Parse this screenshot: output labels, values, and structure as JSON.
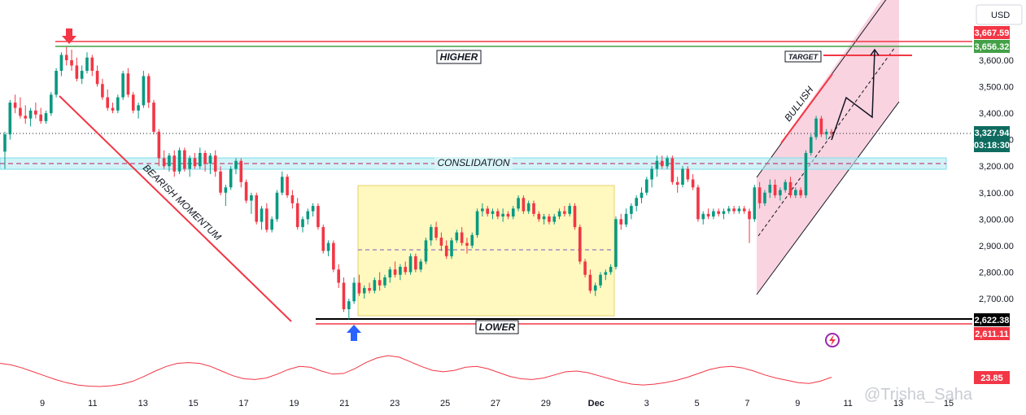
{
  "chart_data": {
    "type": "candlestick",
    "currency_label": "USD",
    "y_ticks": [
      "3,600.00",
      "3,500.00",
      "3,400.00",
      "3,300.00",
      "3,200.00",
      "3,100.00",
      "3,000.00",
      "2,900.00",
      "2,800.00",
      "2,700.00"
    ],
    "ylim": [
      2590,
      3760
    ],
    "x_ticks": [
      "9",
      "11",
      "13",
      "15",
      "17",
      "19",
      "21",
      "23",
      "25",
      "27",
      "29",
      "Dec",
      "3",
      "5",
      "7",
      "9",
      "11",
      "13",
      "15"
    ],
    "price_tags": [
      {
        "label": "3,667.59",
        "value": 3667.59,
        "color": "#f23645"
      },
      {
        "label": "3,656.32",
        "value": 3656.32,
        "color": "#43a047"
      },
      {
        "label": "3,327.94",
        "value": 3327.94,
        "color": "#0f6b5f",
        "sub": "03:18:30"
      },
      {
        "label": "2,622.38",
        "value": 2622.38,
        "color": "#000000"
      },
      {
        "label": "2,611.11",
        "value": 2611.11,
        "color": "#f23645"
      }
    ],
    "annotations": {
      "higher": "HIGHER",
      "lower": "LOWER",
      "consolidation": "CONSLIDATION",
      "bearish": "BEARISH MOMENTUM",
      "bullish": "BULLISH",
      "target": "TARGET"
    },
    "indicator": {
      "label": "23.85",
      "color": "#f23645"
    },
    "watermark": "@Trisha_Saha",
    "candles": [
      {
        "o": 3255,
        "h": 3330,
        "l": 3190,
        "c": 3320
      },
      {
        "o": 3320,
        "h": 3450,
        "l": 3300,
        "c": 3440
      },
      {
        "o": 3440,
        "h": 3470,
        "l": 3400,
        "c": 3420
      },
      {
        "o": 3420,
        "h": 3460,
        "l": 3380,
        "c": 3390
      },
      {
        "o": 3390,
        "h": 3430,
        "l": 3360,
        "c": 3380
      },
      {
        "o": 3380,
        "h": 3420,
        "l": 3350,
        "c": 3410
      },
      {
        "o": 3410,
        "h": 3440,
        "l": 3380,
        "c": 3395
      },
      {
        "o": 3395,
        "h": 3420,
        "l": 3360,
        "c": 3370
      },
      {
        "o": 3370,
        "h": 3410,
        "l": 3360,
        "c": 3400
      },
      {
        "o": 3400,
        "h": 3480,
        "l": 3390,
        "c": 3470
      },
      {
        "o": 3470,
        "h": 3570,
        "l": 3460,
        "c": 3560
      },
      {
        "o": 3560,
        "h": 3630,
        "l": 3540,
        "c": 3620
      },
      {
        "o": 3620,
        "h": 3650,
        "l": 3580,
        "c": 3600
      },
      {
        "o": 3600,
        "h": 3640,
        "l": 3560,
        "c": 3580
      },
      {
        "o": 3580,
        "h": 3610,
        "l": 3520,
        "c": 3530
      },
      {
        "o": 3530,
        "h": 3580,
        "l": 3510,
        "c": 3560
      },
      {
        "o": 3560,
        "h": 3630,
        "l": 3550,
        "c": 3610
      },
      {
        "o": 3610,
        "h": 3620,
        "l": 3540,
        "c": 3560
      },
      {
        "o": 3560,
        "h": 3580,
        "l": 3500,
        "c": 3510
      },
      {
        "o": 3510,
        "h": 3530,
        "l": 3450,
        "c": 3460
      },
      {
        "o": 3460,
        "h": 3490,
        "l": 3410,
        "c": 3420
      },
      {
        "o": 3420,
        "h": 3440,
        "l": 3400,
        "c": 3410
      },
      {
        "o": 3410,
        "h": 3470,
        "l": 3400,
        "c": 3460
      },
      {
        "o": 3460,
        "h": 3560,
        "l": 3450,
        "c": 3550
      },
      {
        "o": 3550,
        "h": 3570,
        "l": 3460,
        "c": 3470
      },
      {
        "o": 3470,
        "h": 3480,
        "l": 3400,
        "c": 3410
      },
      {
        "o": 3410,
        "h": 3440,
        "l": 3380,
        "c": 3430
      },
      {
        "o": 3430,
        "h": 3560,
        "l": 3420,
        "c": 3540
      },
      {
        "o": 3540,
        "h": 3550,
        "l": 3420,
        "c": 3440
      },
      {
        "o": 3440,
        "h": 3450,
        "l": 3320,
        "c": 3330
      },
      {
        "o": 3330,
        "h": 3340,
        "l": 3200,
        "c": 3230
      },
      {
        "o": 3230,
        "h": 3260,
        "l": 3190,
        "c": 3200
      },
      {
        "o": 3200,
        "h": 3250,
        "l": 3180,
        "c": 3240
      },
      {
        "o": 3240,
        "h": 3260,
        "l": 3160,
        "c": 3180
      },
      {
        "o": 3180,
        "h": 3270,
        "l": 3170,
        "c": 3260
      },
      {
        "o": 3260,
        "h": 3270,
        "l": 3180,
        "c": 3190
      },
      {
        "o": 3190,
        "h": 3240,
        "l": 3160,
        "c": 3230
      },
      {
        "o": 3230,
        "h": 3250,
        "l": 3190,
        "c": 3200
      },
      {
        "o": 3200,
        "h": 3270,
        "l": 3190,
        "c": 3250
      },
      {
        "o": 3250,
        "h": 3260,
        "l": 3180,
        "c": 3210
      },
      {
        "o": 3210,
        "h": 3250,
        "l": 3170,
        "c": 3240
      },
      {
        "o": 3240,
        "h": 3260,
        "l": 3160,
        "c": 3180
      },
      {
        "o": 3180,
        "h": 3200,
        "l": 3090,
        "c": 3100
      },
      {
        "o": 3100,
        "h": 3130,
        "l": 3050,
        "c": 3120
      },
      {
        "o": 3120,
        "h": 3200,
        "l": 3110,
        "c": 3190
      },
      {
        "o": 3190,
        "h": 3230,
        "l": 3170,
        "c": 3220
      },
      {
        "o": 3220,
        "h": 3230,
        "l": 3120,
        "c": 3140
      },
      {
        "o": 3140,
        "h": 3150,
        "l": 3060,
        "c": 3070
      },
      {
        "o": 3070,
        "h": 3100,
        "l": 3020,
        "c": 3090
      },
      {
        "o": 3090,
        "h": 3100,
        "l": 2980,
        "c": 2990
      },
      {
        "o": 2990,
        "h": 3050,
        "l": 2960,
        "c": 3040
      },
      {
        "o": 3040,
        "h": 3060,
        "l": 2950,
        "c": 2960
      },
      {
        "o": 2960,
        "h": 3010,
        "l": 2950,
        "c": 3000
      },
      {
        "o": 3000,
        "h": 3110,
        "l": 2990,
        "c": 3100
      },
      {
        "o": 3100,
        "h": 3180,
        "l": 3090,
        "c": 3160
      },
      {
        "o": 3160,
        "h": 3170,
        "l": 3080,
        "c": 3090
      },
      {
        "o": 3090,
        "h": 3110,
        "l": 3040,
        "c": 3060
      },
      {
        "o": 3060,
        "h": 3080,
        "l": 2960,
        "c": 2970
      },
      {
        "o": 2970,
        "h": 3010,
        "l": 2950,
        "c": 3000
      },
      {
        "o": 3000,
        "h": 3040,
        "l": 2980,
        "c": 3030
      },
      {
        "o": 3030,
        "h": 3060,
        "l": 3010,
        "c": 3050
      },
      {
        "o": 3050,
        "h": 3060,
        "l": 2960,
        "c": 2970
      },
      {
        "o": 2970,
        "h": 2980,
        "l": 2870,
        "c": 2880
      },
      {
        "o": 2880,
        "h": 2920,
        "l": 2860,
        "c": 2910
      },
      {
        "o": 2910,
        "h": 2920,
        "l": 2800,
        "c": 2810
      },
      {
        "o": 2810,
        "h": 2830,
        "l": 2740,
        "c": 2760
      },
      {
        "o": 2760,
        "h": 2780,
        "l": 2650,
        "c": 2660
      },
      {
        "o": 2660,
        "h": 2700,
        "l": 2622,
        "c": 2690
      },
      {
        "o": 2690,
        "h": 2780,
        "l": 2680,
        "c": 2760
      },
      {
        "o": 2760,
        "h": 2790,
        "l": 2710,
        "c": 2720
      },
      {
        "o": 2720,
        "h": 2750,
        "l": 2700,
        "c": 2740
      },
      {
        "o": 2740,
        "h": 2760,
        "l": 2720,
        "c": 2730
      },
      {
        "o": 2730,
        "h": 2780,
        "l": 2720,
        "c": 2770
      },
      {
        "o": 2770,
        "h": 2800,
        "l": 2730,
        "c": 2750
      },
      {
        "o": 2750,
        "h": 2790,
        "l": 2740,
        "c": 2780
      },
      {
        "o": 2780,
        "h": 2820,
        "l": 2760,
        "c": 2810
      },
      {
        "o": 2810,
        "h": 2840,
        "l": 2780,
        "c": 2790
      },
      {
        "o": 2790,
        "h": 2830,
        "l": 2770,
        "c": 2820
      },
      {
        "o": 2820,
        "h": 2840,
        "l": 2790,
        "c": 2800
      },
      {
        "o": 2800,
        "h": 2870,
        "l": 2790,
        "c": 2860
      },
      {
        "o": 2860,
        "h": 2870,
        "l": 2800,
        "c": 2810
      },
      {
        "o": 2810,
        "h": 2850,
        "l": 2800,
        "c": 2840
      },
      {
        "o": 2840,
        "h": 2930,
        "l": 2830,
        "c": 2920
      },
      {
        "o": 2920,
        "h": 2980,
        "l": 2900,
        "c": 2970
      },
      {
        "o": 2970,
        "h": 2990,
        "l": 2920,
        "c": 2930
      },
      {
        "o": 2930,
        "h": 2950,
        "l": 2880,
        "c": 2900
      },
      {
        "o": 2900,
        "h": 2920,
        "l": 2850,
        "c": 2860
      },
      {
        "o": 2860,
        "h": 2930,
        "l": 2850,
        "c": 2920
      },
      {
        "o": 2920,
        "h": 2960,
        "l": 2910,
        "c": 2950
      },
      {
        "o": 2950,
        "h": 2970,
        "l": 2900,
        "c": 2910
      },
      {
        "o": 2910,
        "h": 2930,
        "l": 2870,
        "c": 2900
      },
      {
        "o": 2900,
        "h": 2950,
        "l": 2890,
        "c": 2940
      },
      {
        "o": 2940,
        "h": 3040,
        "l": 2930,
        "c": 3030
      },
      {
        "o": 3030,
        "h": 3060,
        "l": 3010,
        "c": 3040
      },
      {
        "o": 3040,
        "h": 3050,
        "l": 3010,
        "c": 3020
      },
      {
        "o": 3020,
        "h": 3040,
        "l": 3000,
        "c": 3030
      },
      {
        "o": 3030,
        "h": 3040,
        "l": 3000,
        "c": 3010
      },
      {
        "o": 3010,
        "h": 3040,
        "l": 2990,
        "c": 3020
      },
      {
        "o": 3020,
        "h": 3030,
        "l": 3000,
        "c": 3010
      },
      {
        "o": 3010,
        "h": 3050,
        "l": 3000,
        "c": 3040
      },
      {
        "o": 3040,
        "h": 3090,
        "l": 3030,
        "c": 3080
      },
      {
        "o": 3080,
        "h": 3090,
        "l": 3020,
        "c": 3030
      },
      {
        "o": 3030,
        "h": 3070,
        "l": 3020,
        "c": 3060
      },
      {
        "o": 3060,
        "h": 3070,
        "l": 3010,
        "c": 3020
      },
      {
        "o": 3020,
        "h": 3030,
        "l": 2990,
        "c": 3000
      },
      {
        "o": 3000,
        "h": 3020,
        "l": 2980,
        "c": 3010
      },
      {
        "o": 3010,
        "h": 3020,
        "l": 2980,
        "c": 2990
      },
      {
        "o": 2990,
        "h": 3020,
        "l": 2980,
        "c": 3010
      },
      {
        "o": 3010,
        "h": 3040,
        "l": 3000,
        "c": 3030
      },
      {
        "o": 3030,
        "h": 3050,
        "l": 3010,
        "c": 3020
      },
      {
        "o": 3020,
        "h": 3060,
        "l": 3010,
        "c": 3050
      },
      {
        "o": 3050,
        "h": 3060,
        "l": 2960,
        "c": 2970
      },
      {
        "o": 2970,
        "h": 2980,
        "l": 2830,
        "c": 2840
      },
      {
        "o": 2840,
        "h": 2850,
        "l": 2780,
        "c": 2790
      },
      {
        "o": 2790,
        "h": 2810,
        "l": 2720,
        "c": 2730
      },
      {
        "o": 2730,
        "h": 2760,
        "l": 2710,
        "c": 2750
      },
      {
        "o": 2750,
        "h": 2800,
        "l": 2740,
        "c": 2790
      },
      {
        "o": 2790,
        "h": 2810,
        "l": 2770,
        "c": 2800
      },
      {
        "o": 2800,
        "h": 2830,
        "l": 2790,
        "c": 2820
      },
      {
        "o": 2820,
        "h": 3010,
        "l": 2810,
        "c": 3000
      },
      {
        "o": 3000,
        "h": 3020,
        "l": 2960,
        "c": 2980
      },
      {
        "o": 2980,
        "h": 3040,
        "l": 2970,
        "c": 3020
      },
      {
        "o": 3020,
        "h": 3060,
        "l": 3000,
        "c": 3050
      },
      {
        "o": 3050,
        "h": 3090,
        "l": 3030,
        "c": 3080
      },
      {
        "o": 3080,
        "h": 3120,
        "l": 3060,
        "c": 3100
      },
      {
        "o": 3100,
        "h": 3160,
        "l": 3090,
        "c": 3150
      },
      {
        "o": 3150,
        "h": 3200,
        "l": 3120,
        "c": 3190
      },
      {
        "o": 3190,
        "h": 3240,
        "l": 3160,
        "c": 3220
      },
      {
        "o": 3220,
        "h": 3240,
        "l": 3190,
        "c": 3200
      },
      {
        "o": 3200,
        "h": 3240,
        "l": 3190,
        "c": 3230
      },
      {
        "o": 3230,
        "h": 3240,
        "l": 3130,
        "c": 3140
      },
      {
        "o": 3140,
        "h": 3160,
        "l": 3100,
        "c": 3130
      },
      {
        "o": 3130,
        "h": 3200,
        "l": 3120,
        "c": 3190
      },
      {
        "o": 3190,
        "h": 3200,
        "l": 3140,
        "c": 3150
      },
      {
        "o": 3150,
        "h": 3170,
        "l": 3110,
        "c": 3120
      },
      {
        "o": 3120,
        "h": 3130,
        "l": 2990,
        "c": 3000
      },
      {
        "o": 3000,
        "h": 3030,
        "l": 2980,
        "c": 3020
      },
      {
        "o": 3020,
        "h": 3040,
        "l": 3000,
        "c": 3010
      },
      {
        "o": 3010,
        "h": 3040,
        "l": 3000,
        "c": 3030
      },
      {
        "o": 3030,
        "h": 3040,
        "l": 3010,
        "c": 3020
      },
      {
        "o": 3020,
        "h": 3040,
        "l": 3000,
        "c": 3030
      },
      {
        "o": 3030,
        "h": 3050,
        "l": 3020,
        "c": 3040
      },
      {
        "o": 3040,
        "h": 3050,
        "l": 3020,
        "c": 3030
      },
      {
        "o": 3030,
        "h": 3050,
        "l": 3020,
        "c": 3040
      },
      {
        "o": 3040,
        "h": 3050,
        "l": 3020,
        "c": 3030
      },
      {
        "o": 3030,
        "h": 3040,
        "l": 2910,
        "c": 3000
      },
      {
        "o": 3000,
        "h": 3130,
        "l": 2990,
        "c": 3120
      },
      {
        "o": 3120,
        "h": 3140,
        "l": 3040,
        "c": 3060
      },
      {
        "o": 3060,
        "h": 3110,
        "l": 3050,
        "c": 3100
      },
      {
        "o": 3100,
        "h": 3150,
        "l": 3080,
        "c": 3130
      },
      {
        "o": 3130,
        "h": 3150,
        "l": 3080,
        "c": 3090
      },
      {
        "o": 3090,
        "h": 3120,
        "l": 3070,
        "c": 3110
      },
      {
        "o": 3110,
        "h": 3150,
        "l": 3100,
        "c": 3140
      },
      {
        "o": 3140,
        "h": 3160,
        "l": 3080,
        "c": 3090
      },
      {
        "o": 3090,
        "h": 3120,
        "l": 3080,
        "c": 3110
      },
      {
        "o": 3110,
        "h": 3120,
        "l": 3080,
        "c": 3090
      },
      {
        "o": 3090,
        "h": 3260,
        "l": 3080,
        "c": 3250
      },
      {
        "o": 3250,
        "h": 3320,
        "l": 3240,
        "c": 3310
      },
      {
        "o": 3310,
        "h": 3390,
        "l": 3300,
        "c": 3380
      },
      {
        "o": 3380,
        "h": 3390,
        "l": 3310,
        "c": 3320
      },
      {
        "o": 3320,
        "h": 3340,
        "l": 3300,
        "c": 3330
      },
      {
        "o": 3330,
        "h": 3340,
        "l": 3310,
        "c": 3328
      }
    ],
    "indicator_values": [
      3.0,
      2.8,
      2.4,
      1.9,
      1.4,
      0.9,
      0.5,
      0.2,
      0.05,
      0.0,
      0.1,
      0.3,
      0.7,
      1.3,
      2.0,
      2.6,
      3.0,
      3.1,
      3.0,
      2.6,
      2.0,
      1.4,
      1.0,
      0.9,
      1.1,
      1.6,
      2.2,
      2.6,
      2.5,
      2.0,
      1.6,
      1.7,
      2.3,
      3.1,
      3.7,
      4.0,
      3.8,
      3.2,
      2.6,
      2.1,
      1.9,
      2.1,
      2.5,
      2.6,
      2.3,
      1.8,
      1.3,
      1.0,
      0.9,
      1.1,
      1.5,
      1.9,
      2.0,
      1.8,
      1.4,
      1.0,
      0.6,
      0.3,
      0.2,
      0.3,
      0.5,
      0.8,
      1.2,
      1.7,
      2.2,
      2.5,
      2.6,
      2.4,
      2.0,
      1.5,
      1.1,
      0.8,
      0.5,
      0.4,
      0.7,
      1.2
    ]
  }
}
